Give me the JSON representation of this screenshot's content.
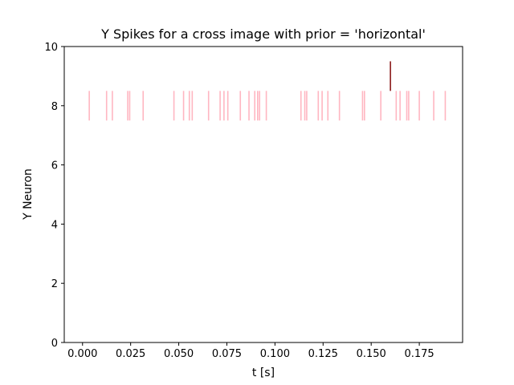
{
  "chart_data": {
    "type": "scatter",
    "title": "Y Spikes for a cross image with prior = 'horizontal'",
    "xlabel": "t [s]",
    "ylabel": "Y Neuron",
    "xlim": [
      -0.0095,
      0.1975
    ],
    "ylim": [
      0,
      10
    ],
    "xticks": [
      0.0,
      0.025,
      0.05,
      0.075,
      0.1,
      0.125,
      0.15,
      0.175
    ],
    "xtick_labels": [
      "0.000",
      "0.025",
      "0.050",
      "0.075",
      "0.100",
      "0.125",
      "0.150",
      "0.175"
    ],
    "yticks": [
      0,
      2,
      4,
      6,
      8,
      10
    ],
    "ytick_labels": [
      "0",
      "2",
      "4",
      "6",
      "8",
      "10"
    ],
    "grid": false,
    "series": [
      {
        "neuron": 8,
        "color": "#ffb6c1",
        "x": [
          0.0035,
          0.0125,
          0.0155,
          0.0235,
          0.0245,
          0.0315,
          0.0475,
          0.0525,
          0.0555,
          0.057,
          0.0655,
          0.0715,
          0.0735,
          0.0755,
          0.082,
          0.0865,
          0.0895,
          0.091,
          0.092,
          0.0955,
          0.1135,
          0.1155,
          0.1165,
          0.1225,
          0.1245,
          0.1275,
          0.1335,
          0.1455,
          0.1465,
          0.155,
          0.163,
          0.165,
          0.1685,
          0.1695,
          0.175,
          0.1825,
          0.1885
        ]
      },
      {
        "neuron": 9,
        "color": "#8b1a1a",
        "x": [
          0.16
        ]
      }
    ]
  }
}
